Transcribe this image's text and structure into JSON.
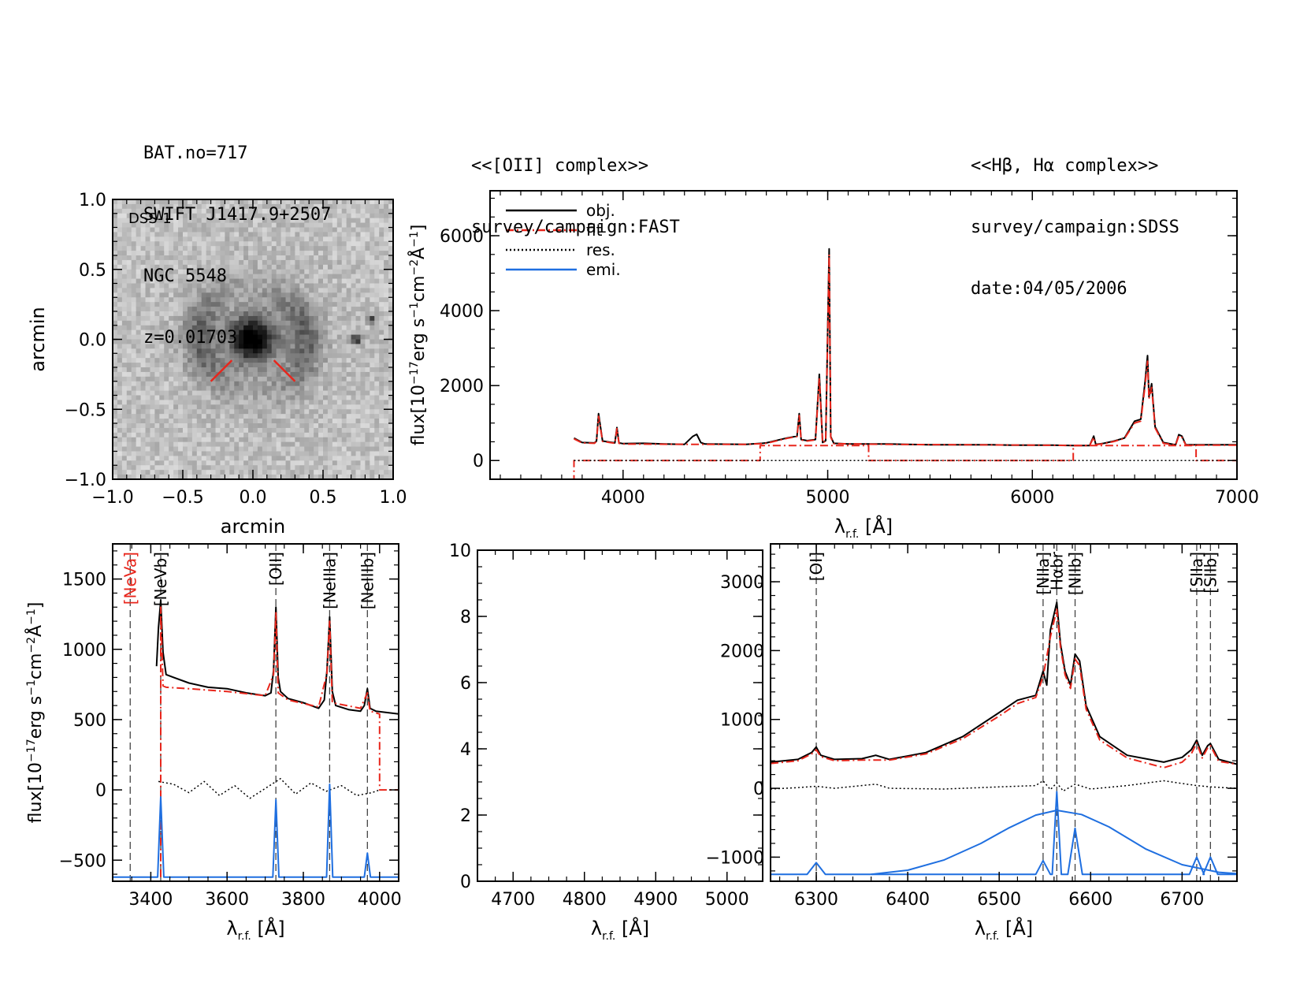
{
  "header": {
    "object_lines": [
      "BAT.no=717",
      "SWIFT J1417.9+2507",
      "NGC 5548",
      "z=0.01703"
    ],
    "oii_title": "<<[OII] complex>>",
    "oii_survey": "survey/campaign:FAST",
    "hb_title": "<<Hβ, Hα complex>>",
    "hb_survey": "survey/campaign:SDSS",
    "hb_date": "date:04/05/2006"
  },
  "colors": {
    "obj": "#000000",
    "fit": "#e8261c",
    "res": "#000000",
    "emi": "#1f6fe0",
    "line_marker": "#444444"
  },
  "chart_data": [
    {
      "id": "image",
      "type": "heatmap",
      "label": "DSS-1",
      "xlabel": "arcmin",
      "ylabel": "arcmin",
      "xlim": [
        -1.0,
        1.0
      ],
      "ylim": [
        -1.0,
        1.0
      ],
      "xticks": [
        "−1.0",
        "−0.5",
        "0.0",
        "0.5",
        "1.0"
      ],
      "yticks": [
        "−1.0",
        "−0.5",
        "0.0",
        "0.5",
        "1.0"
      ],
      "tick_values": [
        -1.0,
        -0.5,
        0.0,
        0.5,
        1.0
      ]
    },
    {
      "id": "full",
      "type": "line",
      "xlabel": "λr.f. [Å]",
      "ylabel": "flux[10⁻¹⁷erg s⁻¹cm⁻²Å⁻¹]",
      "xlim": [
        3350,
        7000
      ],
      "ylim": [
        -500,
        7200
      ],
      "xticks": [
        4000,
        5000,
        6000,
        7000
      ],
      "yticks": [
        0,
        2000,
        4000,
        6000
      ],
      "legend": [
        "obj.",
        "fit",
        "res.",
        "emi."
      ],
      "legend_position": "top-left",
      "series": [
        {
          "name": "obj.",
          "x": [
            3760,
            3800,
            3860,
            3870,
            3880,
            3900,
            3960,
            3970,
            3980,
            4000,
            4100,
            4200,
            4300,
            4340,
            4360,
            4380,
            4400,
            4600,
            4680,
            4700,
            4800,
            4850,
            4861,
            4870,
            4900,
            4940,
            4959,
            4975,
            4990,
            5007,
            5015,
            5030,
            5100,
            5300,
            5500,
            5700,
            5800,
            5900,
            6100,
            6200,
            6280,
            6300,
            6310,
            6350,
            6400,
            6450,
            6500,
            6530,
            6550,
            6563,
            6570,
            6583,
            6600,
            6640,
            6700,
            6716,
            6731,
            6750,
            7000
          ],
          "y": [
            600,
            480,
            470,
            520,
            1250,
            520,
            470,
            880,
            470,
            450,
            460,
            440,
            430,
            640,
            700,
            480,
            440,
            430,
            460,
            470,
            600,
            650,
            1250,
            560,
            530,
            560,
            2300,
            480,
            530,
            5650,
            640,
            460,
            440,
            440,
            420,
            420,
            420,
            410,
            410,
            400,
            400,
            650,
            430,
            460,
            520,
            600,
            1050,
            1100,
            2050,
            2800,
            1700,
            2050,
            900,
            480,
            420,
            690,
            650,
            420,
            420
          ]
        },
        {
          "name": "fit",
          "x": [
            3760,
            3800,
            3860,
            3870,
            3880,
            3900,
            3960,
            3970,
            3980,
            4000,
            4400,
            4600,
            4680,
            4700,
            4800,
            4850,
            4861,
            4870,
            4900,
            4940,
            4959,
            4975,
            4990,
            5007,
            5015,
            5030,
            5300,
            5700,
            6000,
            6200,
            6280,
            6300,
            6310,
            6350,
            6400,
            6450,
            6500,
            6530,
            6550,
            6563,
            6570,
            6583,
            6600,
            6640,
            6700,
            6716,
            6731,
            6750,
            7000
          ],
          "y": [
            580,
            470,
            460,
            510,
            1180,
            510,
            460,
            850,
            460,
            440,
            430,
            430,
            450,
            460,
            590,
            640,
            1200,
            550,
            520,
            550,
            2200,
            470,
            520,
            5500,
            620,
            450,
            430,
            420,
            410,
            400,
            400,
            620,
            420,
            450,
            510,
            590,
            1000,
            1050,
            1950,
            2650,
            1650,
            1950,
            870,
            460,
            410,
            660,
            620,
            410,
            410
          ]
        },
        {
          "name": "fit-continuum",
          "x": [
            3760,
            3760,
            4000,
            4000,
            4670,
            4670,
            5200,
            5200,
            6200,
            6200,
            6800,
            6800,
            7000
          ],
          "y": [
            -600,
            0,
            0,
            0,
            0,
            400,
            400,
            0,
            0,
            400,
            400,
            0,
            0
          ]
        },
        {
          "name": "res.",
          "x": [
            3760,
            7000
          ],
          "y": [
            0,
            0
          ]
        }
      ]
    },
    {
      "id": "oii",
      "type": "line",
      "xlabel": "λr.f. [Å]",
      "ylabel": "flux[10⁻¹⁷erg s⁻¹cm⁻²Å⁻¹]",
      "xlim": [
        3300,
        4050
      ],
      "ylim": [
        -650,
        1750
      ],
      "xticks": [
        3400,
        3600,
        3800,
        4000
      ],
      "yticks": [
        -500,
        0,
        500,
        1000,
        1500
      ],
      "line_labels": [
        {
          "text": "[NeVa]",
          "x": 3346,
          "color": "#e8261c"
        },
        {
          "text": "[NeVb]",
          "x": 3426,
          "color": "#000000"
        },
        {
          "text": "[OII]",
          "x": 3728,
          "color": "#000000"
        },
        {
          "text": "[NeIIIa]",
          "x": 3869,
          "color": "#000000"
        },
        {
          "text": "[NeIIIb]",
          "x": 3968,
          "color": "#000000"
        }
      ],
      "series": [
        {
          "name": "obj.",
          "x": [
            3415,
            3420,
            3426,
            3432,
            3440,
            3460,
            3500,
            3550,
            3600,
            3650,
            3700,
            3715,
            3722,
            3728,
            3734,
            3740,
            3760,
            3800,
            3840,
            3855,
            3862,
            3869,
            3876,
            3885,
            3920,
            3950,
            3960,
            3968,
            3975,
            3990,
            4050
          ],
          "y": [
            880,
            1150,
            1350,
            980,
            820,
            800,
            760,
            730,
            720,
            690,
            670,
            690,
            850,
            1300,
            800,
            700,
            650,
            620,
            580,
            640,
            850,
            1230,
            700,
            600,
            570,
            560,
            600,
            720,
            580,
            560,
            540
          ]
        },
        {
          "name": "fit",
          "x": [
            3426,
            3426,
            3432,
            3440,
            3500,
            3600,
            3700,
            3722,
            3728,
            3734,
            3760,
            3840,
            3862,
            3869,
            3876,
            3950,
            3968,
            3975,
            4000,
            4000,
            4050
          ],
          "y": [
            -620,
            1300,
            740,
            730,
            720,
            700,
            670,
            820,
            1260,
            690,
            640,
            590,
            830,
            1200,
            620,
            580,
            690,
            560,
            540,
            0,
            0
          ]
        },
        {
          "name": "res.",
          "x": [
            3420,
            3460,
            3500,
            3540,
            3580,
            3620,
            3660,
            3700,
            3740,
            3780,
            3820,
            3860,
            3900,
            3940,
            3980,
            4000
          ],
          "y": [
            60,
            40,
            -20,
            60,
            -40,
            30,
            -60,
            10,
            80,
            -30,
            50,
            -10,
            30,
            -40,
            -20,
            0
          ]
        },
        {
          "name": "emi.",
          "x": [
            3300,
            3418,
            3426,
            3434,
            3720,
            3728,
            3736,
            3861,
            3869,
            3877,
            3960,
            3968,
            3976,
            4050
          ],
          "y": [
            -620,
            -620,
            -50,
            -620,
            -620,
            -70,
            -620,
            -620,
            40,
            -620,
            -620,
            -450,
            -620,
            -620
          ]
        }
      ]
    },
    {
      "id": "hbeta",
      "type": "line",
      "xlabel": "λr.f. [Å]",
      "xlim": [
        4650,
        5050
      ],
      "ylim": [
        0,
        10
      ],
      "xticks": [
        4700,
        4800,
        4900,
        5000
      ],
      "yticks": [
        0,
        2,
        4,
        6,
        8,
        10
      ],
      "series": []
    },
    {
      "id": "halpha",
      "type": "line",
      "xlabel": "λr.f. [Å]",
      "xlim": [
        6250,
        6760
      ],
      "ylim": [
        -1350,
        3550
      ],
      "xticks": [
        6300,
        6400,
        6500,
        6600,
        6700
      ],
      "yticks": [
        -1000,
        0,
        1000,
        2000,
        3000
      ],
      "line_labels": [
        {
          "text": "[OI]",
          "x": 6300
        },
        {
          "text": "[NIIa]",
          "x": 6548
        },
        {
          "text": "Hαbr",
          "x": 6563
        },
        {
          "text": "[NIIb]",
          "x": 6583
        },
        {
          "text": "[SIIa]",
          "x": 6716
        },
        {
          "text": "[SIIb]",
          "x": 6731
        }
      ],
      "series": [
        {
          "name": "obj.",
          "x": [
            6250,
            6280,
            6295,
            6300,
            6305,
            6320,
            6350,
            6365,
            6380,
            6420,
            6460,
            6500,
            6520,
            6540,
            6548,
            6552,
            6556,
            6563,
            6567,
            6572,
            6578,
            6583,
            6588,
            6595,
            6610,
            6640,
            6680,
            6700,
            6710,
            6716,
            6722,
            6728,
            6731,
            6740,
            6760
          ],
          "y": [
            380,
            420,
            520,
            600,
            480,
            420,
            430,
            480,
            420,
            520,
            750,
            1100,
            1280,
            1350,
            1700,
            1500,
            2300,
            2700,
            2100,
            1700,
            1500,
            1950,
            1850,
            1200,
            750,
            480,
            380,
            450,
            560,
            700,
            480,
            620,
            650,
            420,
            350
          ]
        },
        {
          "name": "fit",
          "x": [
            6250,
            6280,
            6295,
            6300,
            6305,
            6320,
            6350,
            6380,
            6420,
            6460,
            6500,
            6520,
            6540,
            6548,
            6556,
            6563,
            6567,
            6572,
            6578,
            6583,
            6588,
            6595,
            6610,
            6640,
            6680,
            6700,
            6710,
            6716,
            6722,
            6728,
            6731,
            6740,
            6760
          ],
          "y": [
            360,
            400,
            500,
            560,
            460,
            400,
            410,
            410,
            500,
            720,
            1050,
            1230,
            1320,
            1620,
            2200,
            2600,
            2050,
            1650,
            1450,
            1880,
            1780,
            1150,
            700,
            440,
            300,
            380,
            500,
            660,
            440,
            590,
            620,
            390,
            350
          ]
        },
        {
          "name": "res.",
          "x": [
            6250,
            6280,
            6300,
            6320,
            6365,
            6380,
            6440,
            6500,
            6540,
            6548,
            6556,
            6563,
            6570,
            6583,
            6600,
            6640,
            6680,
            6700,
            6716,
            6731,
            6760
          ],
          "y": [
            -10,
            10,
            30,
            0,
            60,
            0,
            -10,
            20,
            40,
            110,
            -20,
            80,
            -40,
            60,
            -10,
            40,
            110,
            70,
            40,
            20,
            0
          ]
        },
        {
          "name": "emi.",
          "x": [
            6250,
            6290,
            6300,
            6310,
            6540,
            6548,
            6556,
            6558,
            6563,
            6568,
            6575,
            6583,
            6591,
            6708,
            6716,
            6724,
            6723,
            6731,
            6739,
            6760
          ],
          "y": [
            -1250,
            -1250,
            -1080,
            -1250,
            -1250,
            -1050,
            -1250,
            -1250,
            -50,
            -1250,
            -1250,
            -580,
            -1250,
            -1250,
            -1000,
            -1250,
            -1250,
            -1000,
            -1250,
            -1250
          ]
        },
        {
          "name": "emi-broad",
          "x": [
            6360,
            6400,
            6440,
            6480,
            6510,
            6540,
            6563,
            6590,
            6620,
            6660,
            6700,
            6740,
            6760
          ],
          "y": [
            -1250,
            -1190,
            -1040,
            -800,
            -580,
            -390,
            -320,
            -380,
            -560,
            -880,
            -1110,
            -1220,
            -1240
          ]
        }
      ]
    }
  ]
}
